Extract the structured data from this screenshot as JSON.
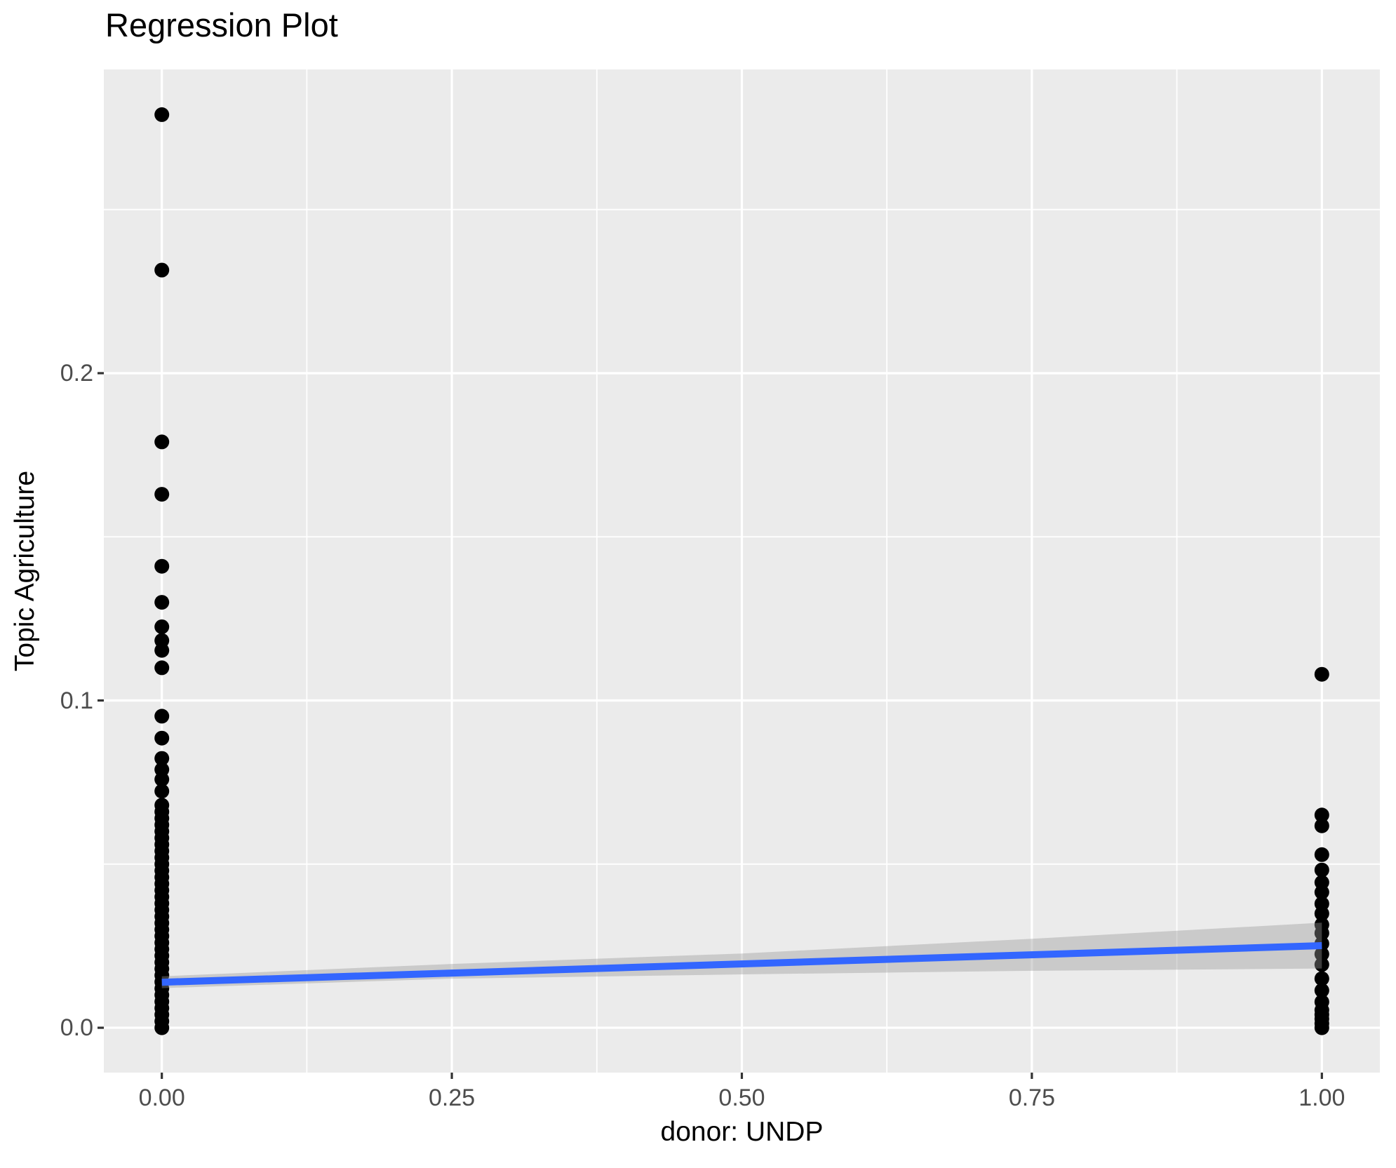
{
  "chart_data": {
    "type": "scatter",
    "title": "Regression Plot",
    "xlabel": "donor: UNDP",
    "ylabel": "Topic Agriculture",
    "legend": "none",
    "grid": "on",
    "panel_style": "ggplot-grey",
    "xlim": [
      -0.05,
      1.05
    ],
    "ylim": [
      -0.0137,
      0.2928
    ],
    "x_ticks": {
      "labels": [
        "0.00",
        "0.25",
        "0.50",
        "0.75",
        "1.00"
      ],
      "values": [
        0,
        0.25,
        0.5,
        0.75,
        1.0
      ]
    },
    "y_ticks": {
      "labels": [
        "0.0",
        "0.1",
        "0.2"
      ],
      "values": [
        0,
        0.1,
        0.2
      ]
    },
    "x_minor_gridlines": [
      0.125,
      0.375,
      0.625,
      0.875
    ],
    "y_minor_gridlines": [
      0.05,
      0.15,
      0.25
    ],
    "series": [
      {
        "name": "donor = 0",
        "x": 0,
        "values": [
          0.279,
          0.2315,
          0.179,
          0.163,
          0.141,
          0.13,
          0.1225,
          0.1183,
          0.1153,
          0.11,
          0.0952,
          0.0885,
          0.0823,
          0.0789,
          0.0759,
          0.0723,
          0.068,
          0.066,
          0.064,
          0.062,
          0.06,
          0.058,
          0.056,
          0.054,
          0.052,
          0.05,
          0.048,
          0.046,
          0.044,
          0.042,
          0.04,
          0.038,
          0.036,
          0.034,
          0.032,
          0.03,
          0.028,
          0.026,
          0.024,
          0.022,
          0.02,
          0.018,
          0.016,
          0.014,
          0.012,
          0.01,
          0.008,
          0.006,
          0.004,
          0.002,
          0.0
        ]
      },
      {
        "name": "donor = 1",
        "x": 1,
        "values": [
          0.108,
          0.065,
          0.0617,
          0.0529,
          0.0482,
          0.0444,
          0.0414,
          0.0379,
          0.0349,
          0.0315,
          0.0289,
          0.0257,
          0.0225,
          0.0193,
          0.015,
          0.0114,
          0.0079,
          0.0054,
          0.004,
          0.0027,
          0.0013,
          0.0
        ]
      }
    ],
    "regression_line": {
      "x": [
        0,
        1
      ],
      "y": [
        0.0139,
        0.0251
      ]
    },
    "confidence_band": {
      "x": [
        0,
        0.25,
        0.5,
        0.75,
        1
      ],
      "upper": [
        0.0157,
        0.0195,
        0.0227,
        0.0272,
        0.0321
      ],
      "lower": [
        0.0121,
        0.015,
        0.0163,
        0.0174,
        0.0181
      ]
    },
    "colors": {
      "panel_background": "#EBEBEB",
      "gridline": "#FFFFFF",
      "point": "#000000",
      "regression_line": "#3366FF",
      "confidence_band": "#999999",
      "confidence_band_opacity": 0.4,
      "tick_text": "#4D4D4D",
      "tick_mark": "#333333",
      "title_text": "#000000"
    }
  }
}
